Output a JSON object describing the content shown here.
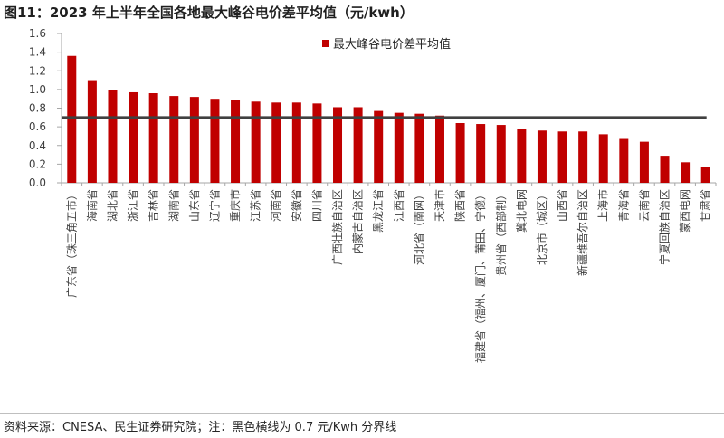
{
  "title": "图11：2023 年上半年全国各地最大峰谷电价差平均值（元/kwh）",
  "source": "资料来源：CNESA、民生证券研究院；注：黑色横线为 0.7 元/Kwh 分界线",
  "colors": {
    "bar": "#C00000",
    "reference_line": "#404040",
    "axis": "#A6A6A6"
  },
  "chart_data": {
    "type": "bar",
    "categories": [
      "广东省（珠三角五市）",
      "海南省",
      "湖北省",
      "浙江省",
      "吉林省",
      "湖南省",
      "山东省",
      "辽宁省",
      "重庆市",
      "江苏省",
      "河南省",
      "安徽省",
      "四川省",
      "广西壮族自治区",
      "内蒙古自治区",
      "黑龙江省",
      "江西省",
      "河北省（南网）",
      "天津市",
      "陕西省",
      "福建省（福州、厦门、莆田、宁德）",
      "贵州省（西部制）",
      "冀北电网",
      "北京市（城区）",
      "山西省",
      "新疆维吾尔自治区",
      "上海市",
      "青海省",
      "云南省",
      "宁夏回族自治区",
      "蒙西电网",
      "甘肃省"
    ],
    "series": [
      {
        "name": "最大峰谷电价差平均值",
        "values": [
          1.36,
          1.1,
          0.99,
          0.97,
          0.96,
          0.93,
          0.92,
          0.9,
          0.89,
          0.87,
          0.86,
          0.86,
          0.85,
          0.81,
          0.81,
          0.77,
          0.75,
          0.74,
          0.72,
          0.64,
          0.63,
          0.62,
          0.58,
          0.56,
          0.55,
          0.55,
          0.52,
          0.47,
          0.44,
          0.29,
          0.22,
          0.17
        ]
      }
    ],
    "ylim": [
      0,
      1.6
    ],
    "yticks": [
      "0.0",
      "0.2",
      "0.4",
      "0.6",
      "0.8",
      "1.0",
      "1.2",
      "1.4",
      "1.6"
    ],
    "reference_line": 0.7,
    "legend_position": "top-center",
    "grid": false
  }
}
